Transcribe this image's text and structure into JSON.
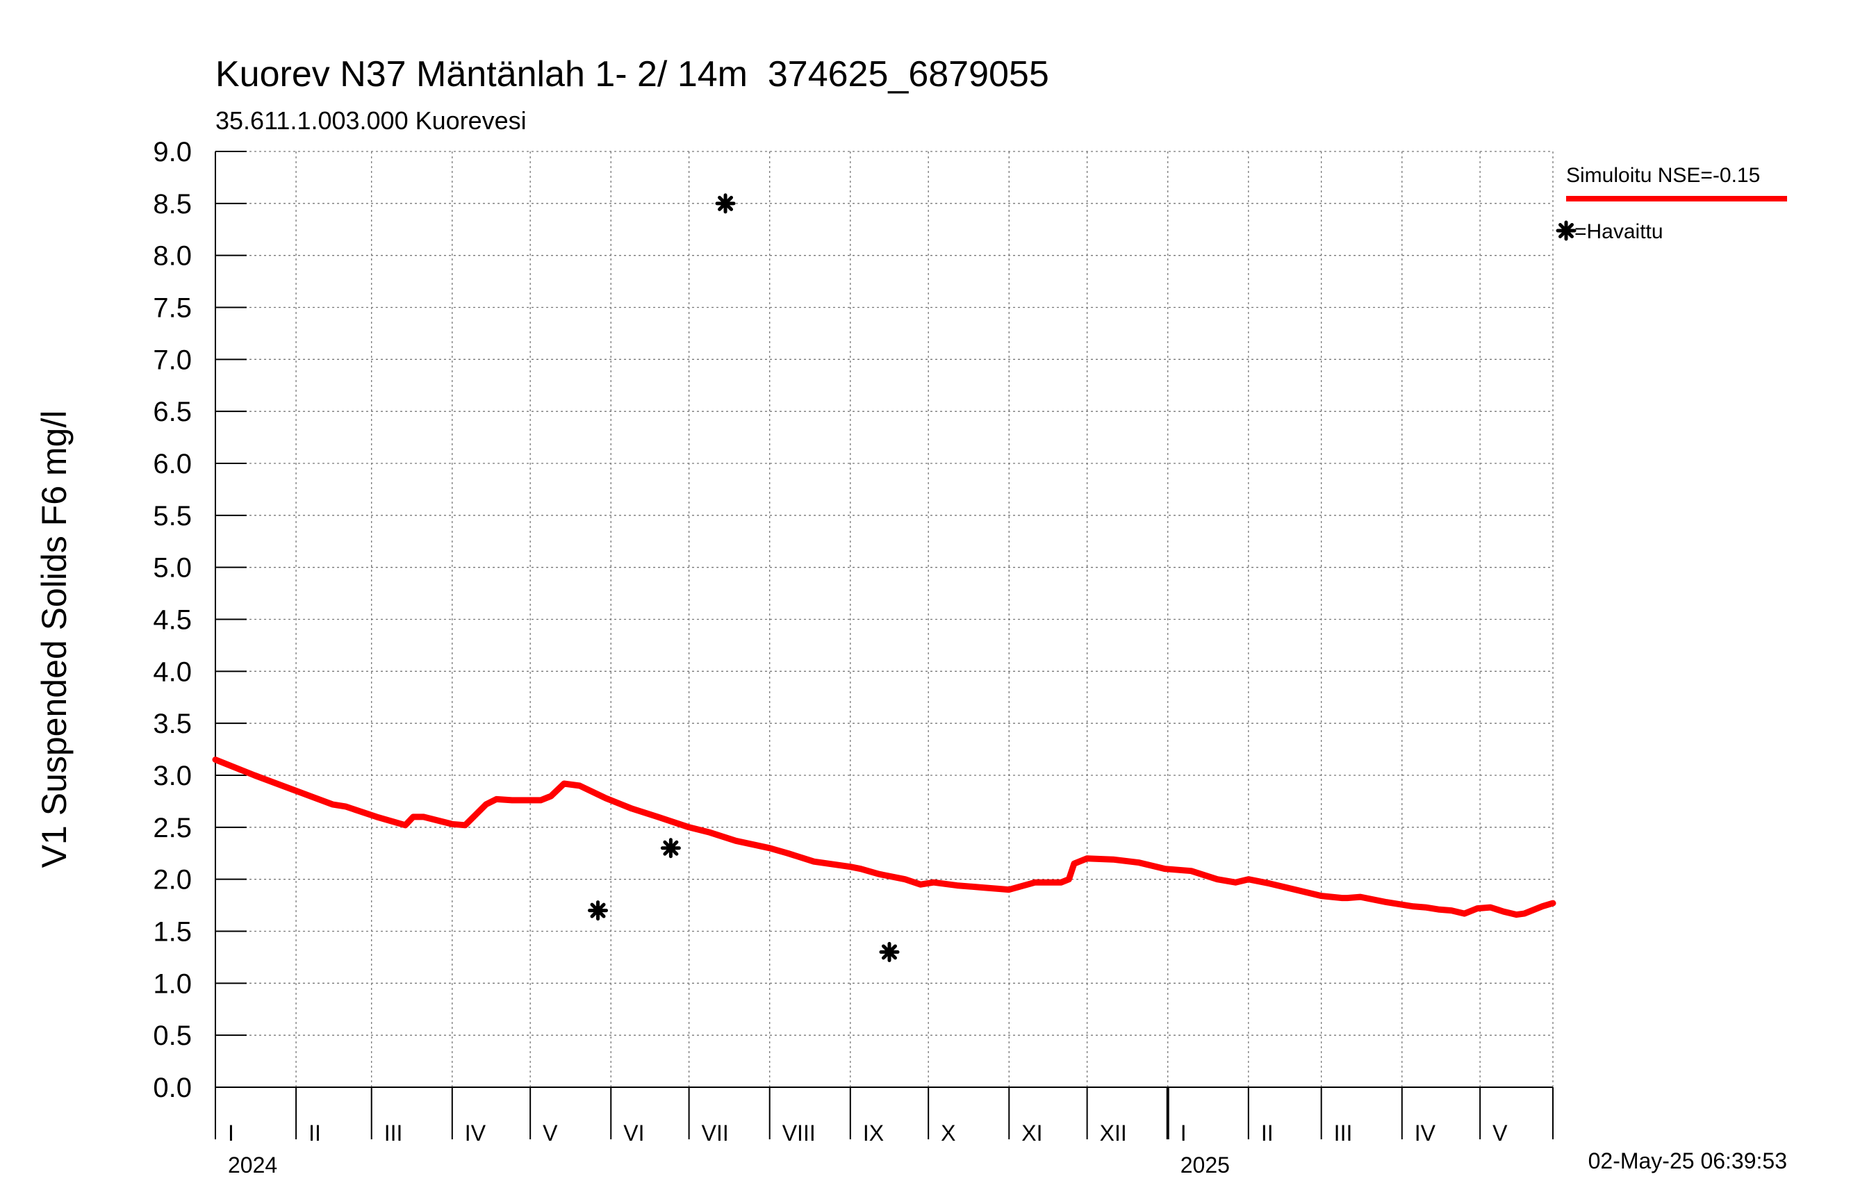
{
  "chart_data": {
    "type": "line",
    "title": "Kuorev N37 Mäntänlah 1- 2/ 14m  374625_6879055",
    "subtitle": "35.611.1.003.000 Kuorevesi",
    "ylabel": "V1 Suspended Solids F6 mg/l",
    "ylim": [
      0,
      9
    ],
    "yticks": [
      "0.0",
      "0.5",
      "1.0",
      "1.5",
      "2.0",
      "2.5",
      "3.0",
      "3.5",
      "4.0",
      "4.5",
      "5.0",
      "5.5",
      "6.0",
      "6.5",
      "7.0",
      "7.5",
      "8.0",
      "8.5",
      "9.0"
    ],
    "x_unit": "days since 2024-01-01",
    "xlim": [
      0,
      514
    ],
    "months": [
      {
        "label": "I",
        "start": 0
      },
      {
        "label": "II",
        "start": 31
      },
      {
        "label": "III",
        "start": 60
      },
      {
        "label": "IV",
        "start": 91
      },
      {
        "label": "V",
        "start": 121
      },
      {
        "label": "VI",
        "start": 152
      },
      {
        "label": "VII",
        "start": 182
      },
      {
        "label": "VIII",
        "start": 213
      },
      {
        "label": "IX",
        "start": 244
      },
      {
        "label": "X",
        "start": 274
      },
      {
        "label": "XI",
        "start": 305
      },
      {
        "label": "XII",
        "start": 335
      },
      {
        "label": "I",
        "start": 366
      },
      {
        "label": "II",
        "start": 397
      },
      {
        "label": "III",
        "start": 425
      },
      {
        "label": "IV",
        "start": 456
      },
      {
        "label": "V",
        "start": 486
      }
    ],
    "years": [
      {
        "label": "2024",
        "start": 0
      },
      {
        "label": "2025",
        "start": 366
      }
    ],
    "series": [
      {
        "name": "Simuloitu NSE=-0.15",
        "color": "#ff0000",
        "x": [
          0,
          15,
          30,
          45,
          50,
          62,
          73,
          76,
          80,
          91,
          96,
          104,
          108,
          114,
          125,
          129,
          134,
          140,
          150,
          160,
          170,
          182,
          190,
          200,
          213,
          220,
          230,
          244,
          248,
          255,
          265,
          271,
          276,
          285,
          295,
          305,
          315,
          325,
          328,
          330,
          335,
          345,
          355,
          365,
          375,
          385,
          392,
          397,
          405,
          415,
          425,
          433,
          435,
          440,
          450,
          460,
          465,
          470,
          475,
          480,
          485,
          490,
          495,
          500,
          503,
          510,
          514
        ],
        "values": [
          3.15,
          3.0,
          2.86,
          2.72,
          2.7,
          2.6,
          2.52,
          2.6,
          2.6,
          2.53,
          2.52,
          2.72,
          2.77,
          2.76,
          2.76,
          2.8,
          2.92,
          2.9,
          2.78,
          2.68,
          2.6,
          2.5,
          2.45,
          2.37,
          2.3,
          2.25,
          2.17,
          2.12,
          2.1,
          2.05,
          2.0,
          1.95,
          1.97,
          1.94,
          1.92,
          1.9,
          1.97,
          1.97,
          2.0,
          2.15,
          2.2,
          2.19,
          2.16,
          2.1,
          2.08,
          2.0,
          1.97,
          2.0,
          1.96,
          1.9,
          1.84,
          1.82,
          1.82,
          1.83,
          1.78,
          1.74,
          1.73,
          1.71,
          1.7,
          1.67,
          1.72,
          1.73,
          1.69,
          1.66,
          1.67,
          1.74,
          1.77
        ]
      },
      {
        "name": "Havaittu",
        "color": "#000000",
        "marker": "asterisk",
        "x": [
          147,
          175,
          196,
          259
        ],
        "values": [
          1.7,
          2.3,
          8.5,
          1.3
        ]
      }
    ],
    "legend": {
      "placement": "top-right",
      "simulated_label": "Simuloitu NSE=-0.15",
      "observed_label": "=Havaittu"
    },
    "timestamp": "02-May-25 06:39:53"
  }
}
